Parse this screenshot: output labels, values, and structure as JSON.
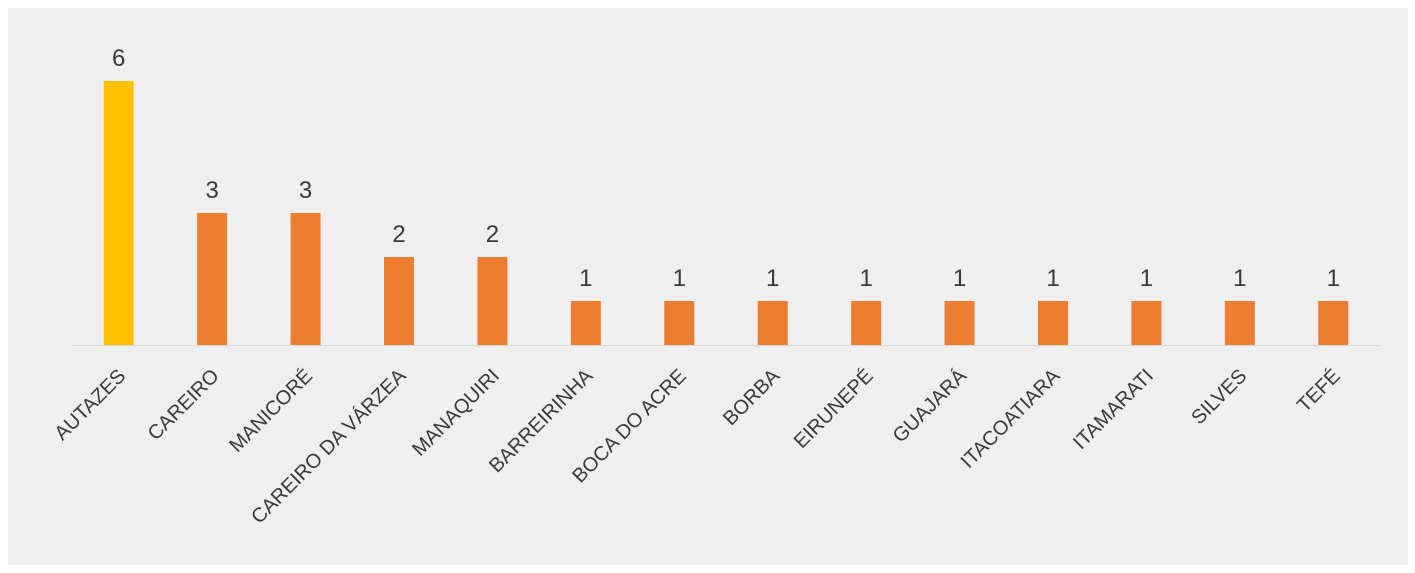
{
  "chart_data": {
    "type": "bar",
    "categories": [
      "AUTAZES",
      "CAREIRO",
      "MANICORÉ",
      "CAREIRO DA VÁRZEA",
      "MANAQUIRI",
      "BARREIRINHA",
      "BOCA DO ACRE",
      "BORBA",
      "EIRUNEPÉ",
      "GUAJARÁ",
      "ITACOATIARA",
      "ITAMARATI",
      "SILVES",
      "TEFÉ"
    ],
    "values": [
      6,
      3,
      3,
      2,
      2,
      1,
      1,
      1,
      1,
      1,
      1,
      1,
      1,
      1
    ],
    "title": "",
    "xlabel": "",
    "ylabel": "",
    "ylim": [
      0,
      6
    ],
    "grid": false,
    "legend": "none",
    "data_labels": true,
    "colors": {
      "highlight": "#FFC000",
      "default": "#ED7D31",
      "background": "#EFEFEF",
      "axis": "#D9D9D9",
      "text": "#3A3A3A"
    },
    "highlight_index": 0
  }
}
